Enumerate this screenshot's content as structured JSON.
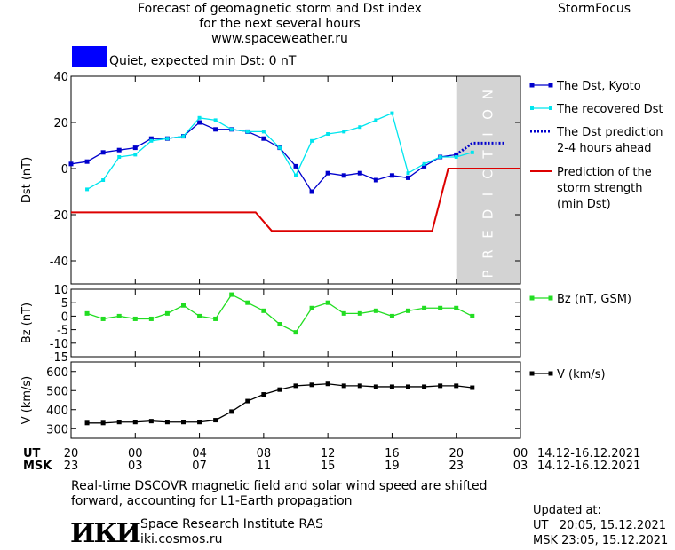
{
  "header": {
    "title_line1": "Forecast of geomagnetic storm and Dst index",
    "title_line2": "for the next several hours",
    "website": "www.spaceweather.ru",
    "brand": "StormFocus"
  },
  "status": {
    "swatch_color": "#0000ff",
    "text": "Quiet, expected min Dst: 0 nT"
  },
  "footer": {
    "note_line1": "Real-time DSCOVR magnetic field and solar wind speed are shifted",
    "note_line2": "forward, accounting for L1-Earth propagation",
    "institute_logo": "ИКИ",
    "institute_name": "Space Research Institute RAS",
    "institute_site": "iki.cosmos.ru",
    "updated_label": "Updated at:",
    "updated_ut": "UT   20:05, 15.12.2021",
    "updated_msk": "MSK 23:05, 15.12.2021"
  },
  "chart_data": {
    "type": "line",
    "time_axis": {
      "x_hours": [
        20,
        22,
        24,
        26,
        28,
        30,
        32,
        34,
        36,
        38,
        40,
        42,
        44,
        46,
        48
      ],
      "ut_label": "UT",
      "msk_label": "MSK",
      "ut_ticks": [
        "20",
        "00",
        "04",
        "08",
        "12",
        "16",
        "20",
        "00"
      ],
      "msk_ticks": [
        "23",
        "03",
        "07",
        "11",
        "15",
        "19",
        "23",
        "03"
      ],
      "tick_hours": [
        20,
        24,
        28,
        32,
        36,
        40,
        44,
        48
      ],
      "date_range": "14.12-16.12.2021",
      "xlim": [
        20,
        48
      ]
    },
    "prediction_zone": {
      "start": 44,
      "end": 48,
      "label": "PREDICTION",
      "color": "#d3d3d3"
    },
    "panels": [
      {
        "name": "dst",
        "ylabel": "Dst (nT)",
        "ylim": [
          -50,
          40
        ],
        "ticks": [
          40,
          20,
          0,
          -20,
          -40
        ],
        "series": [
          {
            "name": "The Dst, Kyoto",
            "color": "#0000cc",
            "marker": "square",
            "x": [
              20,
              21,
              22,
              23,
              24,
              25,
              26,
              27,
              28,
              29,
              30,
              31,
              32,
              33,
              34,
              35,
              36,
              37,
              38,
              39,
              40,
              41,
              42,
              43,
              44
            ],
            "y": [
              2,
              3,
              7,
              8,
              9,
              13,
              13,
              14,
              20,
              17,
              17,
              16,
              13,
              9,
              1,
              -10,
              -2,
              -3,
              -2,
              -5,
              -3,
              -4,
              1,
              5,
              6
            ]
          },
          {
            "name": "The recovered Dst",
            "color": "#00e5ee",
            "marker": "square-small",
            "x": [
              21,
              22,
              23,
              24,
              25,
              26,
              27,
              28,
              29,
              30,
              31,
              32,
              33,
              34,
              35,
              36,
              37,
              38,
              39,
              40,
              41,
              42,
              43,
              44,
              45
            ],
            "y": [
              -9,
              -5,
              5,
              6,
              12,
              13,
              14,
              22,
              21,
              17,
              16,
              16,
              9,
              -3,
              12,
              15,
              16,
              18,
              21,
              24,
              -2,
              2,
              5,
              5,
              7
            ]
          },
          {
            "name": "The Dst prediction 2-4 hours ahead",
            "legend_lines": [
              "The Dst prediction",
              "2-4 hours ahead"
            ],
            "color": "#0000cc",
            "style": "dotted",
            "x": [
              44,
              45,
              46,
              47
            ],
            "y": [
              6,
              11,
              11,
              11
            ]
          },
          {
            "name": "Prediction of the storm strength (min Dst)",
            "legend_lines": [
              "Prediction of the",
              "storm strength",
              "(min Dst)"
            ],
            "color": "#dd0000",
            "style": "step",
            "x": [
              20,
              31.5,
              32.5,
              42.5,
              43.5,
              48
            ],
            "y": [
              -19,
              -19,
              -27,
              -27,
              0,
              0
            ]
          }
        ]
      },
      {
        "name": "bz",
        "ylabel": "Bz (nT)",
        "ylim": [
          -15,
          10
        ],
        "ticks": [
          10,
          5,
          0,
          -5,
          -10,
          -15
        ],
        "series": [
          {
            "name": "Bz (nT, GSM)",
            "color": "#22dd22",
            "marker": "square",
            "x": [
              21,
              22,
              23,
              24,
              25,
              26,
              27,
              28,
              29,
              30,
              31,
              32,
              33,
              34,
              35,
              36,
              37,
              38,
              39,
              40,
              41,
              42,
              43,
              44,
              45
            ],
            "y": [
              1,
              -1,
              0,
              -1,
              -1,
              1,
              4,
              0,
              -1,
              8,
              5,
              2,
              -3,
              -6,
              3,
              5,
              1,
              1,
              2,
              0,
              2,
              3,
              3,
              3,
              0
            ]
          }
        ]
      },
      {
        "name": "v",
        "ylabel": "V (km/s)",
        "ylim": [
          250,
          650
        ],
        "ticks": [
          600,
          500,
          400,
          300
        ],
        "series": [
          {
            "name": "V (km/s)",
            "color": "#000000",
            "marker": "square",
            "x": [
              21,
              22,
              23,
              24,
              25,
              26,
              27,
              28,
              29,
              30,
              31,
              32,
              33,
              34,
              35,
              36,
              37,
              38,
              39,
              40,
              41,
              42,
              43,
              44,
              45
            ],
            "y": [
              330,
              330,
              335,
              335,
              340,
              335,
              335,
              335,
              345,
              390,
              445,
              480,
              505,
              525,
              530,
              535,
              525,
              525,
              520,
              520,
              520,
              520,
              525,
              525,
              515
            ]
          }
        ]
      }
    ]
  }
}
